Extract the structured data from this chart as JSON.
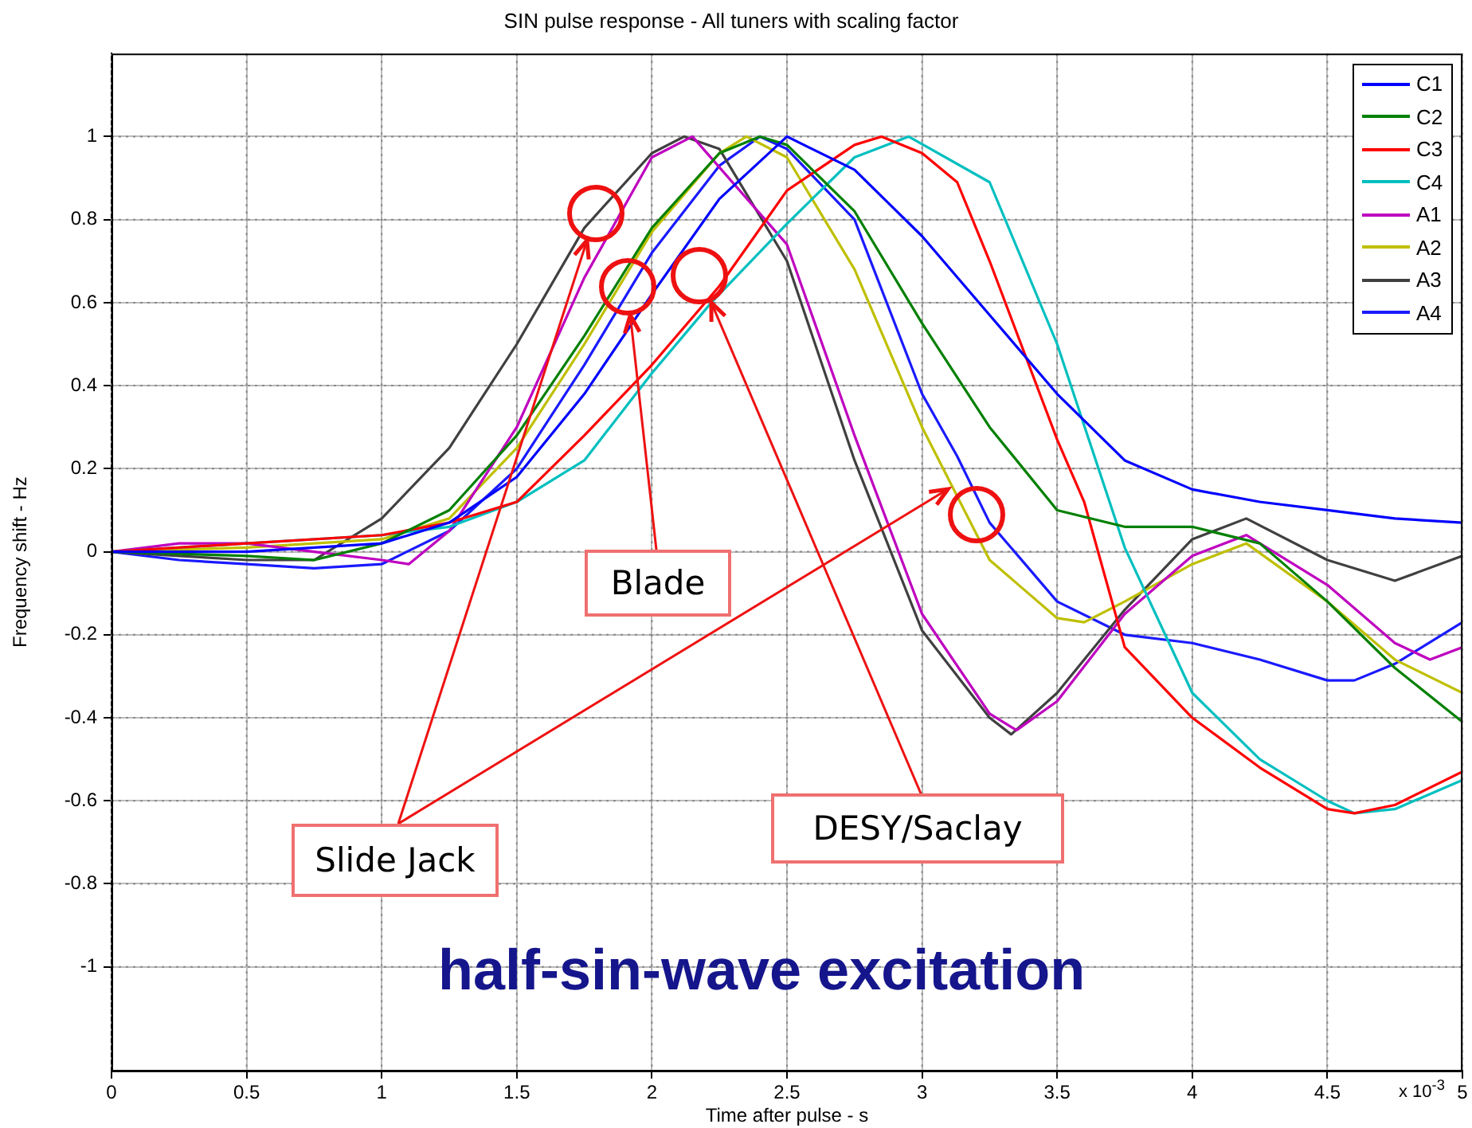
{
  "chart_data": {
    "type": "line",
    "title": "SIN pulse response - All tuners with scaling factor",
    "xlabel": "Time after pulse - s",
    "ylabel": "Frequency shift - Hz",
    "xlim": [
      0,
      5
    ],
    "xticks": [
      0,
      0.5,
      1,
      1.5,
      2,
      2.5,
      3,
      3.5,
      4,
      4.5,
      5
    ],
    "ylim": [
      -1.25,
      1.2
    ],
    "yticks": [
      -1,
      -0.8,
      -0.6,
      -0.4,
      -0.2,
      0,
      0.2,
      0.4,
      0.6,
      0.8,
      1
    ],
    "grid": true,
    "legend": "top right",
    "marker": "none",
    "line_style": "solid",
    "annotations": [
      {
        "text": "Blade",
        "x": 1.92,
        "y": 0.57
      },
      {
        "text": "Slide Jack",
        "x": 1.76,
        "y": 0.75
      },
      {
        "text": "DESY/Saclay",
        "x": 2.22,
        "y": 0.6
      },
      "half-sin-wave excitation",
      "x 10$^{-3}$"
    ],
    "series": [
      {
        "name": "C1",
        "color": "#0000ff",
        "x": [
          0,
          0.5,
          1,
          1.25,
          1.5,
          1.75,
          2,
          2.25,
          2.5,
          2.75,
          3,
          3.25,
          3.5,
          3.75,
          4,
          4.25,
          4.5,
          4.75,
          5
        ],
        "values": [
          0,
          0,
          0.02,
          0.07,
          0.18,
          0.38,
          0.62,
          0.85,
          1,
          0.92,
          0.76,
          0.57,
          0.38,
          0.22,
          0.15,
          0.12,
          0.1,
          0.08,
          0.07
        ]
      },
      {
        "name": "C2",
        "color": "#008000",
        "x": [
          0,
          0.5,
          0.75,
          1,
          1.25,
          1.5,
          1.75,
          2,
          2.25,
          2.4,
          2.5,
          2.75,
          3,
          3.25,
          3.5,
          3.75,
          4,
          4.25,
          4.5,
          4.75,
          5
        ],
        "values": [
          0,
          -0.01,
          -0.02,
          0.02,
          0.1,
          0.28,
          0.52,
          0.78,
          0.96,
          1,
          0.98,
          0.82,
          0.55,
          0.3,
          0.1,
          0.06,
          0.06,
          0.02,
          -0.12,
          -0.28,
          -0.41
        ]
      },
      {
        "name": "C3",
        "color": "#ff0000",
        "x": [
          0,
          0.5,
          1,
          1.25,
          1.5,
          1.75,
          2,
          2.25,
          2.5,
          2.75,
          2.85,
          3,
          3.13,
          3.25,
          3.5,
          3.6,
          3.75,
          4,
          4.25,
          4.5,
          4.6,
          4.75,
          5
        ],
        "values": [
          0,
          0.02,
          0.04,
          0.07,
          0.12,
          0.28,
          0.45,
          0.64,
          0.87,
          0.98,
          1,
          0.96,
          0.89,
          0.7,
          0.27,
          0.12,
          -0.23,
          -0.4,
          -0.52,
          -0.62,
          -0.63,
          -0.61,
          -0.53
        ]
      },
      {
        "name": "C4",
        "color": "#00bfbf",
        "x": [
          0,
          0.5,
          1,
          1.25,
          1.5,
          1.75,
          2,
          2.22,
          2.5,
          2.75,
          2.95,
          3.25,
          3.5,
          3.75,
          4,
          4.25,
          4.5,
          4.6,
          4.75,
          5
        ],
        "values": [
          0,
          0.02,
          0.04,
          0.06,
          0.12,
          0.22,
          0.43,
          0.6,
          0.79,
          0.95,
          1,
          0.89,
          0.5,
          0.01,
          -0.34,
          -0.5,
          -0.6,
          -0.63,
          -0.62,
          -0.55
        ]
      },
      {
        "name": "A1",
        "color": "#bf00bf",
        "x": [
          0,
          0.25,
          0.5,
          0.75,
          1,
          1.1,
          1.25,
          1.5,
          1.75,
          2,
          2.15,
          2.5,
          2.75,
          3,
          3.25,
          3.35,
          3.5,
          3.75,
          4,
          4.2,
          4.5,
          4.75,
          4.88,
          5
        ],
        "values": [
          0,
          0.02,
          0.02,
          0,
          -0.02,
          -0.03,
          0.05,
          0.3,
          0.66,
          0.95,
          1,
          0.74,
          0.28,
          -0.15,
          -0.39,
          -0.43,
          -0.36,
          -0.15,
          -0.01,
          0.04,
          -0.08,
          -0.22,
          -0.26,
          -0.23
        ]
      },
      {
        "name": "A2",
        "color": "#bfbf00",
        "x": [
          0,
          0.5,
          1,
          1.25,
          1.5,
          1.75,
          2,
          2.25,
          2.35,
          2.5,
          2.75,
          3,
          3.25,
          3.5,
          3.6,
          3.75,
          4,
          4.2,
          4.5,
          4.75,
          5
        ],
        "values": [
          0,
          0.01,
          0.03,
          0.08,
          0.25,
          0.5,
          0.77,
          0.96,
          1,
          0.95,
          0.68,
          0.3,
          -0.02,
          -0.16,
          -0.17,
          -0.12,
          -0.03,
          0.02,
          -0.12,
          -0.26,
          -0.34
        ]
      },
      {
        "name": "A3",
        "color": "#404040",
        "x": [
          0,
          0.25,
          0.5,
          0.75,
          1,
          1.25,
          1.5,
          1.75,
          2,
          2.12,
          2.25,
          2.5,
          2.75,
          3,
          3.25,
          3.33,
          3.5,
          3.75,
          4,
          4.2,
          4.5,
          4.75,
          5
        ],
        "values": [
          0,
          -0.01,
          -0.02,
          -0.02,
          0.08,
          0.25,
          0.5,
          0.78,
          0.96,
          1,
          0.97,
          0.7,
          0.22,
          -0.19,
          -0.4,
          -0.44,
          -0.34,
          -0.14,
          0.03,
          0.08,
          -0.02,
          -0.07,
          -0.01
        ]
      },
      {
        "name": "A4",
        "color": "#1a1aff",
        "x": [
          0,
          0.25,
          0.5,
          0.75,
          1,
          1.25,
          1.5,
          1.75,
          2,
          2.25,
          2.4,
          2.5,
          2.75,
          3,
          3.13,
          3.25,
          3.5,
          3.75,
          4,
          4.25,
          4.5,
          4.6,
          4.75,
          5
        ],
        "values": [
          0,
          -0.02,
          -0.03,
          -0.04,
          -0.03,
          0.05,
          0.2,
          0.45,
          0.72,
          0.93,
          1,
          0.97,
          0.8,
          0.38,
          0.23,
          0.07,
          -0.12,
          -0.2,
          -0.22,
          -0.26,
          -0.31,
          -0.31,
          -0.27,
          -0.17
        ]
      }
    ]
  }
}
